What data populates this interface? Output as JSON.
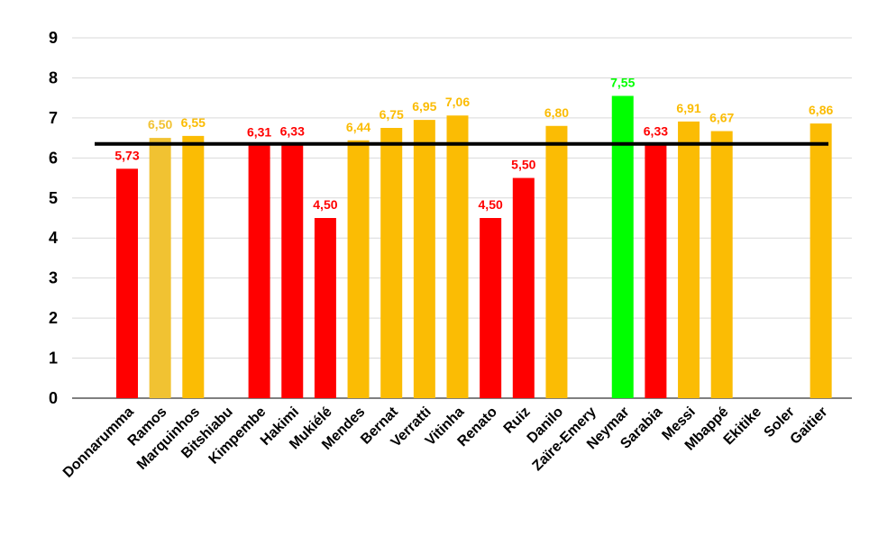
{
  "chart_data": {
    "type": "bar",
    "categories": [
      "Donnarumma",
      "Ramos",
      "Marquinhos",
      "Bitshiabu",
      "Kimpembe",
      "Hakimi",
      "Mukiélé",
      "Mendes",
      "Bernat",
      "Verratti",
      "Vitinha",
      "Renato",
      "Ruiz",
      "Danilo",
      "Zaïre-Emery",
      "Neymar",
      "Sarabia",
      "Messi",
      "Mbappé",
      "Ekitike",
      "Soler",
      "Gaitier"
    ],
    "values": [
      5.73,
      6.5,
      6.55,
      null,
      6.31,
      6.33,
      4.5,
      6.44,
      6.75,
      6.95,
      7.06,
      4.5,
      5.5,
      6.8,
      null,
      7.55,
      6.33,
      6.91,
      6.67,
      null,
      null,
      6.86
    ],
    "data_labels": [
      "5,73",
      "6,50",
      "6,55",
      "",
      "6,31",
      "6,33",
      "4,50",
      "6,44",
      "6,75",
      "6,95",
      "7,06",
      "4,50",
      "5,50",
      "6,80",
      "",
      "7,55",
      "6,33",
      "6,91",
      "6,67",
      "",
      "",
      "6,86"
    ],
    "bar_colors": [
      "#ff0000",
      "#f1c232",
      "#fbbc04",
      "",
      "#ff0000",
      "#ff0000",
      "#ff0000",
      "#fbbc04",
      "#fbbc04",
      "#fbbc04",
      "#fbbc04",
      "#ff0000",
      "#ff0000",
      "#fbbc04",
      "",
      "#00ff00",
      "#ff0000",
      "#fbbc04",
      "#fbbc04",
      "",
      "",
      "#fbbc04"
    ],
    "label_colors": [
      "#ff0000",
      "#f1c232",
      "#fbbc04",
      "",
      "#ff0000",
      "#ff0000",
      "#ff0000",
      "#fbbc04",
      "#fbbc04",
      "#fbbc04",
      "#fbbc04",
      "#ff0000",
      "#ff0000",
      "#fbbc04",
      "",
      "#00ff00",
      "#ff0000",
      "#fbbc04",
      "#fbbc04",
      "",
      "",
      "#fbbc04"
    ],
    "reference_line": 6.35,
    "reference_line_color": "#000000",
    "ylim": [
      0,
      9
    ],
    "yticks": [
      "0",
      "1",
      "2",
      "3",
      "4",
      "5",
      "6",
      "7",
      "8",
      "9"
    ],
    "grid": true,
    "title": "",
    "xlabel": "",
    "ylabel": ""
  }
}
